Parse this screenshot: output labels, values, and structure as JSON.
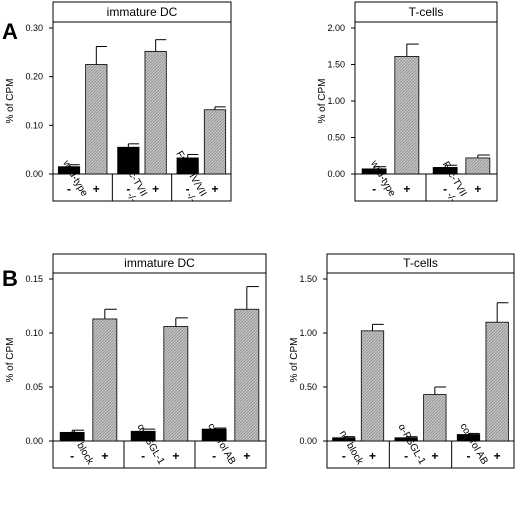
{
  "panel_labels": [
    "A",
    "B"
  ],
  "chart_data": [
    {
      "type": "bar",
      "title": "immature DC",
      "ylabel": "% of CPM",
      "ylim": [
        0,
        0.3
      ],
      "yticks": [
        "0.00",
        "0.10",
        "0.20",
        "0.30"
      ],
      "categories": [
        "wild-type",
        "Fuc-TVII -/-",
        "Fuc-TIV/VII -/-"
      ],
      "category_lines": [
        [
          "wild-type"
        ],
        [
          "Fuc-TVII",
          "-/-"
        ],
        [
          "Fuc-TIV/VII",
          "-/-"
        ]
      ],
      "sign_labels": [
        "-",
        "+"
      ],
      "series": [
        {
          "name": "-",
          "values": [
            0.015,
            0.055,
            0.033
          ],
          "errors": [
            0.004,
            0.007,
            0.007
          ],
          "color": "#000000"
        },
        {
          "name": "+",
          "values": [
            0.225,
            0.252,
            0.132
          ],
          "errors": [
            0.037,
            0.024,
            0.006
          ],
          "color": "#b8b8b8"
        }
      ]
    },
    {
      "type": "bar",
      "title": "T-cells",
      "ylabel": "% of CPM",
      "ylim": [
        0,
        2.0
      ],
      "yticks": [
        "0.00",
        "0.50",
        "1.00",
        "1.50",
        "2.00"
      ],
      "categories": [
        "wild-type",
        "Fuc-TVII -/-"
      ],
      "category_lines": [
        [
          "wild-type"
        ],
        [
          "Fuc-TVII",
          "-/-"
        ]
      ],
      "sign_labels": [
        "-",
        "+"
      ],
      "series": [
        {
          "name": "-",
          "values": [
            0.07,
            0.09
          ],
          "errors": [
            0.03,
            0.03
          ],
          "color": "#000000"
        },
        {
          "name": "+",
          "values": [
            1.61,
            0.22
          ],
          "errors": [
            0.17,
            0.04
          ],
          "color": "#b8b8b8"
        }
      ]
    },
    {
      "type": "bar",
      "title": "immature DC",
      "ylabel": "% of CPM",
      "ylim": [
        0,
        0.15
      ],
      "yticks": [
        "0.00",
        "0.05",
        "0.10",
        "0.15"
      ],
      "categories": [
        "no block",
        "α-PSGL-1",
        "control AB"
      ],
      "category_lines": [
        [
          "no block"
        ],
        [
          "α-PSGL-1"
        ],
        [
          "control AB"
        ]
      ],
      "sign_labels": [
        "-",
        "+"
      ],
      "series": [
        {
          "name": "-",
          "values": [
            0.008,
            0.009,
            0.011
          ],
          "errors": [
            0.002,
            0.002,
            0.001
          ],
          "color": "#000000"
        },
        {
          "name": "+",
          "values": [
            0.113,
            0.106,
            0.122
          ],
          "errors": [
            0.009,
            0.008,
            0.021
          ],
          "color": "#b8b8b8"
        }
      ]
    },
    {
      "type": "bar",
      "title": "T-cells",
      "ylabel": "% of CPM",
      "ylim": [
        0,
        1.5
      ],
      "yticks": [
        "0.00",
        "0.50",
        "1.00",
        "1.50"
      ],
      "categories": [
        "no block",
        "α-PSGL-1",
        "control AB"
      ],
      "category_lines": [
        [
          "no block"
        ],
        [
          "α-PSGL-1"
        ],
        [
          "control AB"
        ]
      ],
      "sign_labels": [
        "-",
        "+"
      ],
      "series": [
        {
          "name": "-",
          "values": [
            0.03,
            0.03,
            0.06
          ],
          "errors": [
            0.01,
            0.01,
            0.01
          ],
          "color": "#000000"
        },
        {
          "name": "+",
          "values": [
            1.02,
            0.43,
            1.1
          ],
          "errors": [
            0.06,
            0.07,
            0.18
          ],
          "color": "#b8b8b8"
        }
      ]
    }
  ]
}
